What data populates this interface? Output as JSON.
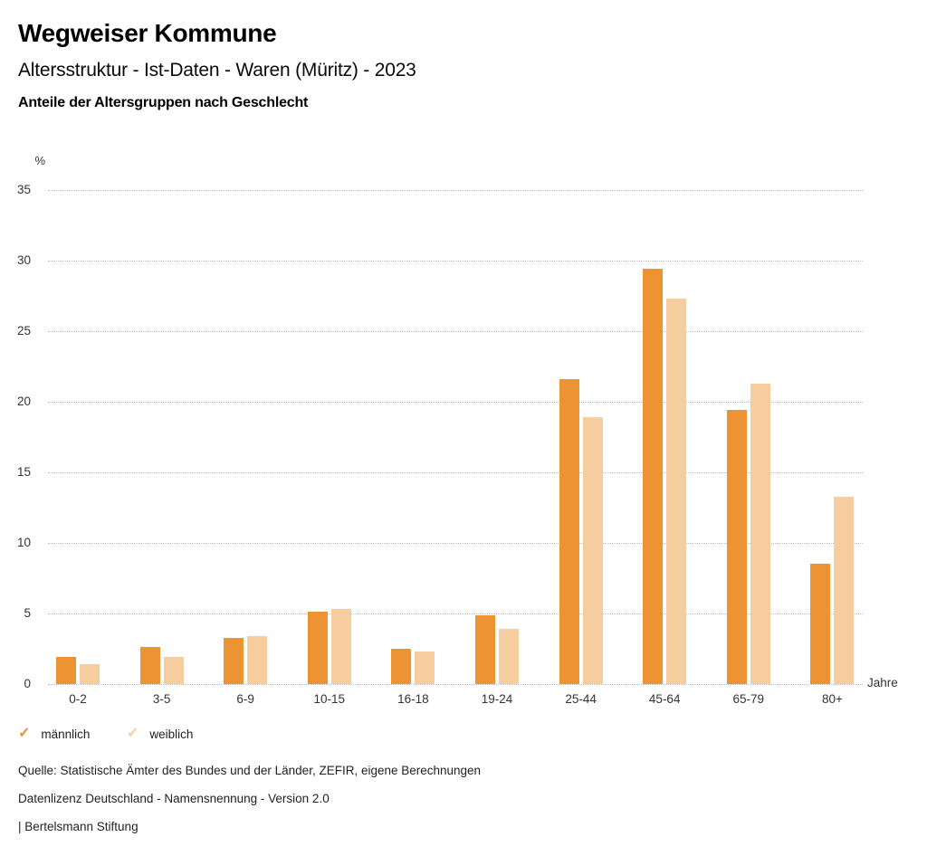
{
  "header": {
    "title": "Wegweiser Kommune",
    "subtitle": "Altersstruktur - Ist-Daten - Waren (Müritz) - 2023",
    "heading": "Anteile der Altersgruppen nach Geschlecht"
  },
  "chart_data": {
    "type": "bar",
    "title": "Anteile der Altersgruppen nach Geschlecht",
    "y_unit_label": "%",
    "x_unit_label": "Jahre",
    "categories": [
      "0-2",
      "3-5",
      "6-9",
      "10-15",
      "16-18",
      "19-24",
      "25-44",
      "45-64",
      "65-79",
      "80+"
    ],
    "series": [
      {
        "name": "männlich",
        "color": "#EC9434",
        "values": [
          1.9,
          2.6,
          3.3,
          5.1,
          2.5,
          4.9,
          21.6,
          29.4,
          19.4,
          8.5
        ]
      },
      {
        "name": "weiblich",
        "color": "#F5CD9E",
        "values": [
          1.4,
          1.9,
          3.4,
          5.3,
          2.3,
          3.9,
          18.9,
          27.3,
          21.3,
          13.3
        ]
      }
    ],
    "ylim": [
      0,
      35
    ],
    "ytick_step": 5,
    "yticks": [
      0,
      5,
      10,
      15,
      20,
      25,
      30,
      35
    ],
    "grid": "dotted-horizontal",
    "legend_position": "bottom-left"
  },
  "legend": {
    "check_glyph": "✓",
    "items": [
      {
        "label": "männlich",
        "color": "#EC9434"
      },
      {
        "label": "weiblich",
        "color": "#F5CD9E"
      }
    ]
  },
  "footer": {
    "lines": [
      "Quelle: Statistische Ämter des Bundes und der Länder, ZEFIR, eigene Berechnungen",
      "Datenlizenz Deutschland - Namensnennung - Version 2.0",
      "| Bertelsmann Stiftung"
    ]
  }
}
